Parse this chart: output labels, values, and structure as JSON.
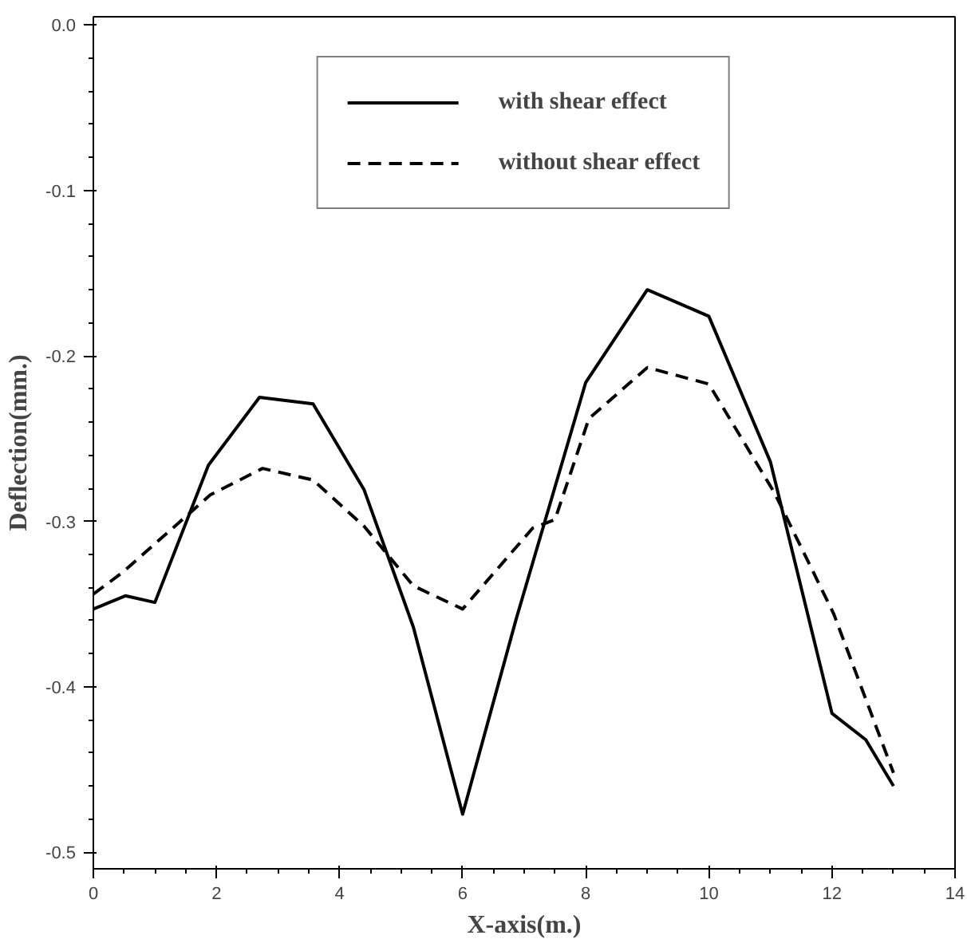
{
  "chart_data": {
    "type": "line",
    "xlabel": "X-axis(m.)",
    "ylabel": "Deflection(mm.)",
    "xlim": [
      0,
      14
    ],
    "xticks": [
      0,
      2,
      4,
      6,
      8,
      10,
      12,
      14
    ],
    "ylim": [
      -0.51,
      0.005
    ],
    "yticks": [
      {
        "value": 0,
        "label": "0.0"
      },
      -0.1,
      -0.2,
      -0.3,
      -0.4,
      -0.5
    ],
    "grid": false,
    "legend": "top",
    "marker": "none",
    "series": [
      {
        "name": "with shear effect",
        "color": "#000000",
        "line_style": "solid",
        "x": [
          0,
          0.52,
          1.0,
          1.87,
          2.7,
          3.57,
          4.4,
          5.2,
          6.0,
          6.87,
          8.0,
          9.0,
          10.0,
          11.0,
          12.0,
          12.55,
          13.0
        ],
        "values": [
          -0.353,
          -0.345,
          -0.349,
          -0.266,
          -0.225,
          -0.229,
          -0.281,
          -0.364,
          -0.477,
          -0.359,
          -0.216,
          -0.16,
          -0.176,
          -0.264,
          -0.416,
          -0.432,
          -0.46
        ]
      },
      {
        "name": "without shear effect",
        "color": "#000000",
        "line_style": "dashed",
        "x": [
          0,
          0.47,
          1.9,
          2.75,
          3.57,
          4.4,
          5.2,
          6.0,
          7.14,
          7.5,
          8.05,
          9.0,
          10.0,
          11.07,
          12.03,
          13.0
        ],
        "values": [
          -0.344,
          -0.331,
          -0.284,
          -0.268,
          -0.275,
          -0.303,
          -0.339,
          -0.353,
          -0.304,
          -0.299,
          -0.238,
          -0.207,
          -0.217,
          -0.283,
          -0.356,
          -0.452
        ]
      }
    ]
  }
}
